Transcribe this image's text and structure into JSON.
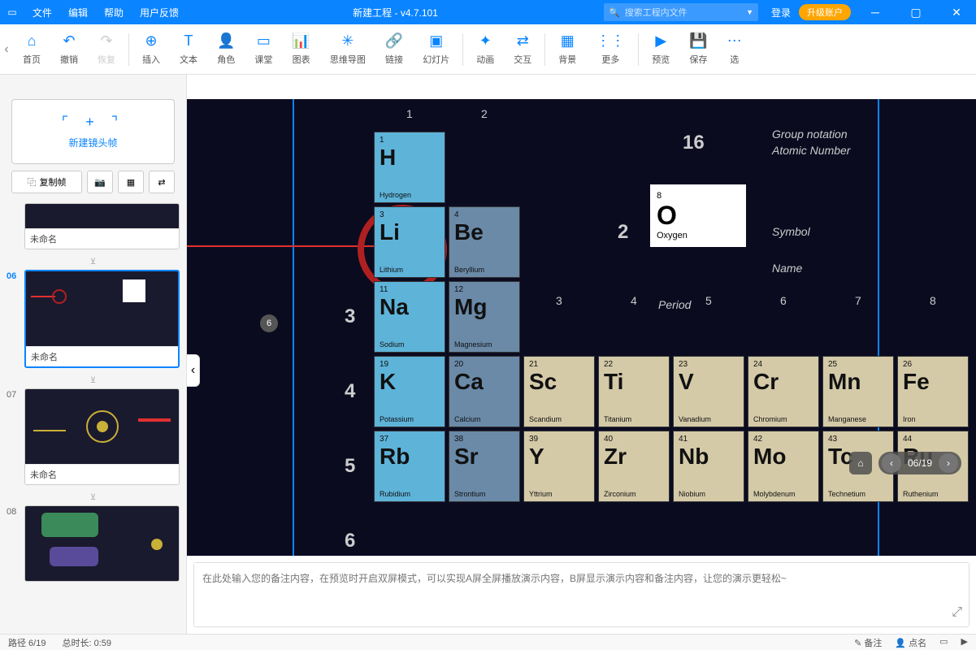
{
  "titlebar": {
    "menus": [
      "文件",
      "编辑",
      "帮助",
      "用户反馈"
    ],
    "title": "新建工程 - v4.7.101",
    "search_placeholder": "搜索工程内文件",
    "login": "登录",
    "upgrade": "升级账户"
  },
  "toolbar": {
    "items": [
      {
        "label": "首页",
        "icon": "⌂"
      },
      {
        "label": "撤销",
        "icon": "↶"
      },
      {
        "label": "恢复",
        "icon": "↷",
        "disabled": true
      }
    ],
    "items2": [
      {
        "label": "插入",
        "icon": "⊕"
      },
      {
        "label": "文本",
        "icon": "T"
      },
      {
        "label": "角色",
        "icon": "👤"
      },
      {
        "label": "课堂",
        "icon": "▭"
      },
      {
        "label": "图表",
        "icon": "📊"
      },
      {
        "label": "思维导图",
        "icon": "✳"
      },
      {
        "label": "链接",
        "icon": "🔗"
      },
      {
        "label": "幻灯片",
        "icon": "▣"
      }
    ],
    "items3": [
      {
        "label": "动画",
        "icon": "✦"
      },
      {
        "label": "交互",
        "icon": "⇄"
      }
    ],
    "items4": [
      {
        "label": "背景",
        "icon": "▦"
      },
      {
        "label": "更多",
        "icon": "⋮⋮"
      }
    ],
    "items5": [
      {
        "label": "预览",
        "icon": "▶"
      },
      {
        "label": "保存",
        "icon": "💾"
      },
      {
        "label": "选",
        "icon": "⋯"
      }
    ]
  },
  "sidebar": {
    "new_frame": "新建镜头帧",
    "copy_frame": "复制帧",
    "thumbs": [
      {
        "num": "",
        "title": "未命名",
        "partial": true
      },
      {
        "num": "06",
        "title": "未命名",
        "selected": true
      },
      {
        "num": "07",
        "title": "未命名"
      },
      {
        "num": "08",
        "title": ""
      }
    ]
  },
  "canvas": {
    "col_labels": {
      "1": "1",
      "2": "2",
      "3": "3",
      "4": "4",
      "5": "5",
      "6": "6",
      "7": "7",
      "8": "8"
    },
    "row_labels": {
      "2": "2",
      "3": "3",
      "4": "4",
      "5": "5",
      "6": "6"
    },
    "legend_title_num": "16",
    "legend_group": "Group notation",
    "legend_atomic": "Atomic Number",
    "legend_symbol": "Symbol",
    "legend_name": "Name",
    "legend_period": "Period",
    "oxygen": {
      "num": "8",
      "sym": "O",
      "name": "Oxygen"
    },
    "cells": {
      "H": {
        "num": "1",
        "sym": "H",
        "name": "Hydrogen",
        "color": "#5eb3d9"
      },
      "Li": {
        "num": "3",
        "sym": "Li",
        "name": "Lithium",
        "color": "#5eb3d9"
      },
      "Be": {
        "num": "4",
        "sym": "Be",
        "name": "Beryllium",
        "color": "#6a8aa8"
      },
      "Na": {
        "num": "11",
        "sym": "Na",
        "name": "Sodium",
        "color": "#5eb3d9"
      },
      "Mg": {
        "num": "12",
        "sym": "Mg",
        "name": "Magnesium",
        "color": "#6a8aa8"
      },
      "K": {
        "num": "19",
        "sym": "K",
        "name": "Potassium",
        "color": "#5eb3d9"
      },
      "Ca": {
        "num": "20",
        "sym": "Ca",
        "name": "Calcium",
        "color": "#6a8aa8"
      },
      "Sc": {
        "num": "21",
        "sym": "Sc",
        "name": "Scandium",
        "color": "#d4caa8"
      },
      "Ti": {
        "num": "22",
        "sym": "Ti",
        "name": "Titanium",
        "color": "#d4caa8"
      },
      "V": {
        "num": "23",
        "sym": "V",
        "name": "Vanadium",
        "color": "#d4caa8"
      },
      "Cr": {
        "num": "24",
        "sym": "Cr",
        "name": "Chromium",
        "color": "#d4caa8"
      },
      "Mn": {
        "num": "25",
        "sym": "Mn",
        "name": "Manganese",
        "color": "#d4caa8"
      },
      "Fe": {
        "num": "26",
        "sym": "Fe",
        "name": "Iron",
        "color": "#d4caa8"
      },
      "Rb": {
        "num": "37",
        "sym": "Rb",
        "name": "Rubidium",
        "color": "#5eb3d9"
      },
      "Sr": {
        "num": "38",
        "sym": "Sr",
        "name": "Strontium",
        "color": "#6a8aa8"
      },
      "Y": {
        "num": "39",
        "sym": "Y",
        "name": "Yttrium",
        "color": "#d4caa8"
      },
      "Zr": {
        "num": "40",
        "sym": "Zr",
        "name": "Zirconium",
        "color": "#d4caa8"
      },
      "Nb": {
        "num": "41",
        "sym": "Nb",
        "name": "Niobium",
        "color": "#d4caa8"
      },
      "Mo": {
        "num": "42",
        "sym": "Mo",
        "name": "Molybdenum",
        "color": "#d4caa8"
      },
      "Tc": {
        "num": "43",
        "sym": "Tc",
        "name": "Technetium",
        "color": "#d4caa8"
      },
      "Ru": {
        "num": "44",
        "sym": "Ru",
        "name": "Ruthenium",
        "color": "#d4caa8"
      }
    },
    "marker": "6",
    "slide_counter": "06/19"
  },
  "notes_placeholder": "在此处输入您的备注内容，在预览时开启双屏模式，可以实现A屏全屏播放演示内容，B屏显示演示内容和备注内容，让您的演示更轻松~",
  "statusbar": {
    "path": "路径 6/19",
    "duration": "总时长: 0:59",
    "note_btn": "备注",
    "like_btn": "点名"
  }
}
